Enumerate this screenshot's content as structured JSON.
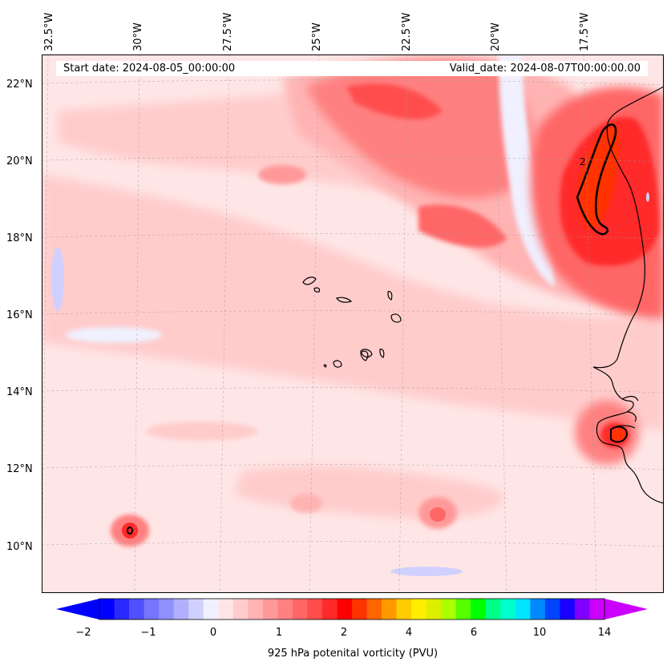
{
  "map": {
    "start_date": "Start date: 2024-08-05_00:00:00",
    "valid_date": "Valid_date: 2024-08-07T00:00:00.00",
    "lon_labels": [
      "32.5°W",
      "30°W",
      "27.5°W",
      "25°W",
      "22.5°W",
      "20°W",
      "17.5°W"
    ],
    "lat_labels": [
      "22°N",
      "20°N",
      "18°N",
      "16°N",
      "14°N",
      "12°N",
      "10°N"
    ],
    "contour_label": "2"
  },
  "colorbar": {
    "label": "925 hPa potenital vorticity (PVU)",
    "ticks": [
      "−2",
      "−1",
      "0",
      "1",
      "2",
      "4",
      "6",
      "10",
      "14"
    ],
    "colors": [
      "#0000ff",
      "#2a2aff",
      "#5050ff",
      "#7575ff",
      "#9090ff",
      "#b0b0ff",
      "#d0d0ff",
      "#f0f0ff",
      "#ffe6e6",
      "#ffcccc",
      "#ffb3b3",
      "#ff9999",
      "#ff8080",
      "#ff6666",
      "#ff4d4d",
      "#ff2a2a",
      "#ff0000",
      "#ff3300",
      "#ff6600",
      "#ff9900",
      "#ffcc00",
      "#ffee00",
      "#ddee00",
      "#aaff00",
      "#55ff00",
      "#00ff00",
      "#00ff88",
      "#00ffcc",
      "#00e5ff",
      "#0088ff",
      "#0044ff",
      "#1a00ff",
      "#7f00ff",
      "#cc00ff"
    ],
    "under_color": "#0000ff",
    "over_color": "#cc00ff"
  }
}
